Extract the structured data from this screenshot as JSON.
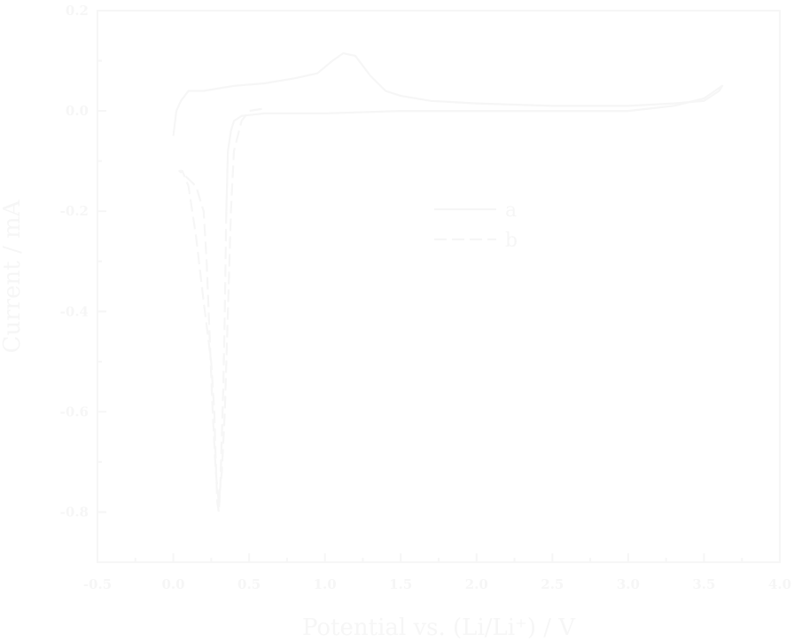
{
  "chart_data": {
    "type": "line",
    "xlabel": "Potential vs. (Li/Li⁺) / V",
    "ylabel": "Current / mA",
    "xlim": [
      -0.5,
      4.0
    ],
    "ylim": [
      -0.9,
      0.2
    ],
    "x_ticks": [
      -0.5,
      0.0,
      0.5,
      1.0,
      1.5,
      2.0,
      2.5,
      3.0,
      3.5,
      4.0
    ],
    "x_tick_labels": [
      "-0.5",
      "0.0",
      "0.5",
      "1.0",
      "1.5",
      "2.0",
      "2.5",
      "3.0",
      "3.5",
      "4.0"
    ],
    "y_ticks": [
      0.2,
      0.0,
      -0.2,
      -0.4,
      -0.6,
      -0.8
    ],
    "y_tick_labels": [
      "0.2",
      "0.0",
      "-0.2",
      "-0.4",
      "-0.6",
      "-0.8"
    ],
    "grid": false,
    "legend_position": "right",
    "colors": {
      "background": "#ffffff",
      "foreground": "#f6f6f6"
    },
    "series": [
      {
        "name": "a",
        "dash": "solid",
        "x": [
          0.0,
          0.02,
          0.05,
          0.1,
          0.2,
          0.4,
          0.6,
          0.8,
          0.95,
          1.05,
          1.12,
          1.2,
          1.3,
          1.4,
          1.5,
          1.7,
          2.0,
          2.5,
          3.0,
          3.3,
          3.5,
          3.6,
          3.62,
          3.5,
          3.3,
          3.0,
          2.5,
          2.0,
          1.5,
          1.0,
          0.6,
          0.45,
          0.4,
          0.38,
          0.36,
          0.35
        ],
        "y": [
          -0.05,
          0.0,
          0.02,
          0.04,
          0.04,
          0.05,
          0.055,
          0.065,
          0.075,
          0.1,
          0.115,
          0.11,
          0.07,
          0.04,
          0.03,
          0.02,
          0.015,
          0.01,
          0.01,
          0.015,
          0.02,
          0.04,
          0.05,
          0.025,
          0.01,
          0.0,
          0.0,
          0.0,
          0.0,
          -0.005,
          -0.005,
          -0.01,
          -0.02,
          -0.04,
          -0.08,
          -0.2
        ]
      },
      {
        "name": "b",
        "dash": "dashed",
        "x": [
          0.35,
          0.34,
          0.33,
          0.32,
          0.31,
          0.3,
          0.29,
          0.28,
          0.27,
          0.25,
          0.2,
          0.15,
          0.1,
          0.06,
          0.04,
          0.08,
          0.15,
          0.2,
          0.22,
          0.24,
          0.26,
          0.28,
          0.3,
          0.32,
          0.34,
          0.36,
          0.38,
          0.4,
          0.45,
          0.5,
          0.6
        ],
        "y": [
          -0.2,
          -0.4,
          -0.55,
          -0.65,
          -0.75,
          -0.8,
          -0.78,
          -0.7,
          -0.6,
          -0.5,
          -0.38,
          -0.25,
          -0.15,
          -0.12,
          -0.12,
          -0.13,
          -0.15,
          -0.2,
          -0.3,
          -0.45,
          -0.6,
          -0.72,
          -0.78,
          -0.72,
          -0.6,
          -0.4,
          -0.2,
          -0.08,
          -0.02,
          0.0,
          0.005
        ]
      }
    ]
  }
}
